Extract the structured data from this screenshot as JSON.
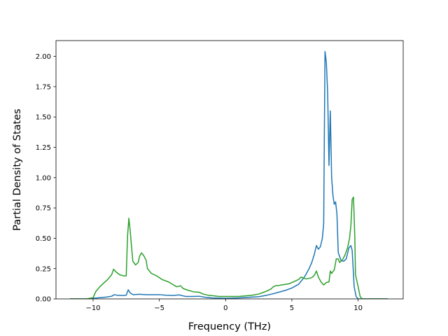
{
  "chart_data": {
    "type": "line",
    "title": "",
    "xlabel": "Frequency (THz)",
    "ylabel": "Partial Density of States",
    "xlim": [
      -12.8,
      13.4
    ],
    "ylim": [
      0,
      2.13
    ],
    "xticks": [
      -10,
      -5,
      0,
      5,
      10
    ],
    "xtick_labels": [
      "−10",
      "−5",
      "0",
      "5",
      "10"
    ],
    "yticks": [
      0,
      0.25,
      0.5,
      0.75,
      1.0,
      1.25,
      1.5,
      1.75,
      2.0
    ],
    "ytick_labels": [
      "0.00",
      "0.25",
      "0.50",
      "0.75",
      "1.00",
      "1.25",
      "1.50",
      "1.75",
      "2.00"
    ],
    "grid": false,
    "legend": "none",
    "series": [
      {
        "color": "#1f77b4",
        "points": [
          [
            -11.7,
            0.0
          ],
          [
            -10.5,
            0.0
          ],
          [
            -10.0,
            0.005
          ],
          [
            -9.5,
            0.01
          ],
          [
            -9.0,
            0.015
          ],
          [
            -8.6,
            0.022
          ],
          [
            -8.4,
            0.035
          ],
          [
            -8.2,
            0.03
          ],
          [
            -7.8,
            0.028
          ],
          [
            -7.5,
            0.03
          ],
          [
            -7.35,
            0.075
          ],
          [
            -7.2,
            0.05
          ],
          [
            -7.0,
            0.035
          ],
          [
            -6.5,
            0.038
          ],
          [
            -6.0,
            0.035
          ],
          [
            -5.5,
            0.035
          ],
          [
            -5.0,
            0.035
          ],
          [
            -4.5,
            0.03
          ],
          [
            -4.0,
            0.028
          ],
          [
            -3.5,
            0.033
          ],
          [
            -3.2,
            0.025
          ],
          [
            -3.0,
            0.02
          ],
          [
            -2.5,
            0.02
          ],
          [
            -2.0,
            0.022
          ],
          [
            -1.5,
            0.013
          ],
          [
            -1.0,
            0.008
          ],
          [
            0.0,
            0.005
          ],
          [
            1.0,
            0.008
          ],
          [
            2.0,
            0.015
          ],
          [
            2.5,
            0.018
          ],
          [
            3.0,
            0.028
          ],
          [
            3.5,
            0.04
          ],
          [
            4.0,
            0.055
          ],
          [
            4.5,
            0.07
          ],
          [
            5.0,
            0.09
          ],
          [
            5.5,
            0.12
          ],
          [
            5.8,
            0.16
          ],
          [
            6.0,
            0.19
          ],
          [
            6.3,
            0.25
          ],
          [
            6.5,
            0.3
          ],
          [
            6.7,
            0.37
          ],
          [
            6.85,
            0.44
          ],
          [
            7.0,
            0.41
          ],
          [
            7.15,
            0.43
          ],
          [
            7.3,
            0.5
          ],
          [
            7.4,
            0.62
          ],
          [
            7.5,
            2.04
          ],
          [
            7.6,
            1.95
          ],
          [
            7.7,
            1.7
          ],
          [
            7.8,
            1.1
          ],
          [
            7.9,
            1.55
          ],
          [
            8.0,
            1.0
          ],
          [
            8.1,
            0.85
          ],
          [
            8.2,
            0.78
          ],
          [
            8.3,
            0.8
          ],
          [
            8.4,
            0.7
          ],
          [
            8.5,
            0.38
          ],
          [
            8.7,
            0.32
          ],
          [
            8.9,
            0.31
          ],
          [
            9.1,
            0.33
          ],
          [
            9.3,
            0.42
          ],
          [
            9.45,
            0.44
          ],
          [
            9.55,
            0.4
          ],
          [
            9.7,
            0.1
          ],
          [
            9.85,
            0.02
          ],
          [
            10.0,
            0.0
          ],
          [
            11.0,
            0.0
          ],
          [
            12.2,
            0.0
          ]
        ]
      },
      {
        "color": "#2ca02c",
        "points": [
          [
            -11.7,
            0.0
          ],
          [
            -10.5,
            0.0
          ],
          [
            -10.0,
            0.01
          ],
          [
            -9.8,
            0.06
          ],
          [
            -9.5,
            0.1
          ],
          [
            -9.2,
            0.13
          ],
          [
            -8.9,
            0.16
          ],
          [
            -8.6,
            0.2
          ],
          [
            -8.45,
            0.245
          ],
          [
            -8.3,
            0.225
          ],
          [
            -8.0,
            0.2
          ],
          [
            -7.7,
            0.19
          ],
          [
            -7.5,
            0.19
          ],
          [
            -7.4,
            0.52
          ],
          [
            -7.3,
            0.665
          ],
          [
            -7.2,
            0.56
          ],
          [
            -7.1,
            0.43
          ],
          [
            -7.0,
            0.31
          ],
          [
            -6.8,
            0.28
          ],
          [
            -6.6,
            0.3
          ],
          [
            -6.5,
            0.35
          ],
          [
            -6.35,
            0.38
          ],
          [
            -6.2,
            0.36
          ],
          [
            -6.0,
            0.32
          ],
          [
            -5.9,
            0.25
          ],
          [
            -5.6,
            0.21
          ],
          [
            -5.2,
            0.19
          ],
          [
            -4.8,
            0.16
          ],
          [
            -4.3,
            0.14
          ],
          [
            -4.0,
            0.12
          ],
          [
            -3.7,
            0.1
          ],
          [
            -3.4,
            0.108
          ],
          [
            -3.2,
            0.085
          ],
          [
            -2.8,
            0.07
          ],
          [
            -2.4,
            0.058
          ],
          [
            -2.0,
            0.055
          ],
          [
            -1.7,
            0.04
          ],
          [
            -1.3,
            0.03
          ],
          [
            -0.5,
            0.02
          ],
          [
            0.0,
            0.02
          ],
          [
            1.0,
            0.02
          ],
          [
            1.5,
            0.025
          ],
          [
            2.0,
            0.03
          ],
          [
            2.5,
            0.04
          ],
          [
            3.0,
            0.06
          ],
          [
            3.4,
            0.08
          ],
          [
            3.6,
            0.1
          ],
          [
            3.8,
            0.11
          ],
          [
            4.0,
            0.11
          ],
          [
            4.2,
            0.115
          ],
          [
            4.5,
            0.12
          ],
          [
            4.8,
            0.125
          ],
          [
            5.0,
            0.135
          ],
          [
            5.3,
            0.15
          ],
          [
            5.5,
            0.16
          ],
          [
            5.7,
            0.18
          ],
          [
            5.9,
            0.17
          ],
          [
            6.1,
            0.165
          ],
          [
            6.5,
            0.175
          ],
          [
            6.7,
            0.195
          ],
          [
            6.85,
            0.23
          ],
          [
            7.0,
            0.18
          ],
          [
            7.2,
            0.14
          ],
          [
            7.4,
            0.115
          ],
          [
            7.6,
            0.135
          ],
          [
            7.8,
            0.14
          ],
          [
            7.9,
            0.23
          ],
          [
            8.0,
            0.21
          ],
          [
            8.2,
            0.24
          ],
          [
            8.35,
            0.33
          ],
          [
            8.5,
            0.33
          ],
          [
            8.6,
            0.3
          ],
          [
            8.8,
            0.32
          ],
          [
            9.0,
            0.36
          ],
          [
            9.2,
            0.42
          ],
          [
            9.35,
            0.5
          ],
          [
            9.45,
            0.6
          ],
          [
            9.55,
            0.82
          ],
          [
            9.65,
            0.84
          ],
          [
            9.75,
            0.5
          ],
          [
            9.8,
            0.2
          ],
          [
            10.0,
            0.1
          ],
          [
            10.15,
            0.02
          ],
          [
            10.3,
            0.0
          ],
          [
            11.0,
            0.0
          ],
          [
            12.2,
            0.0
          ]
        ]
      }
    ]
  }
}
